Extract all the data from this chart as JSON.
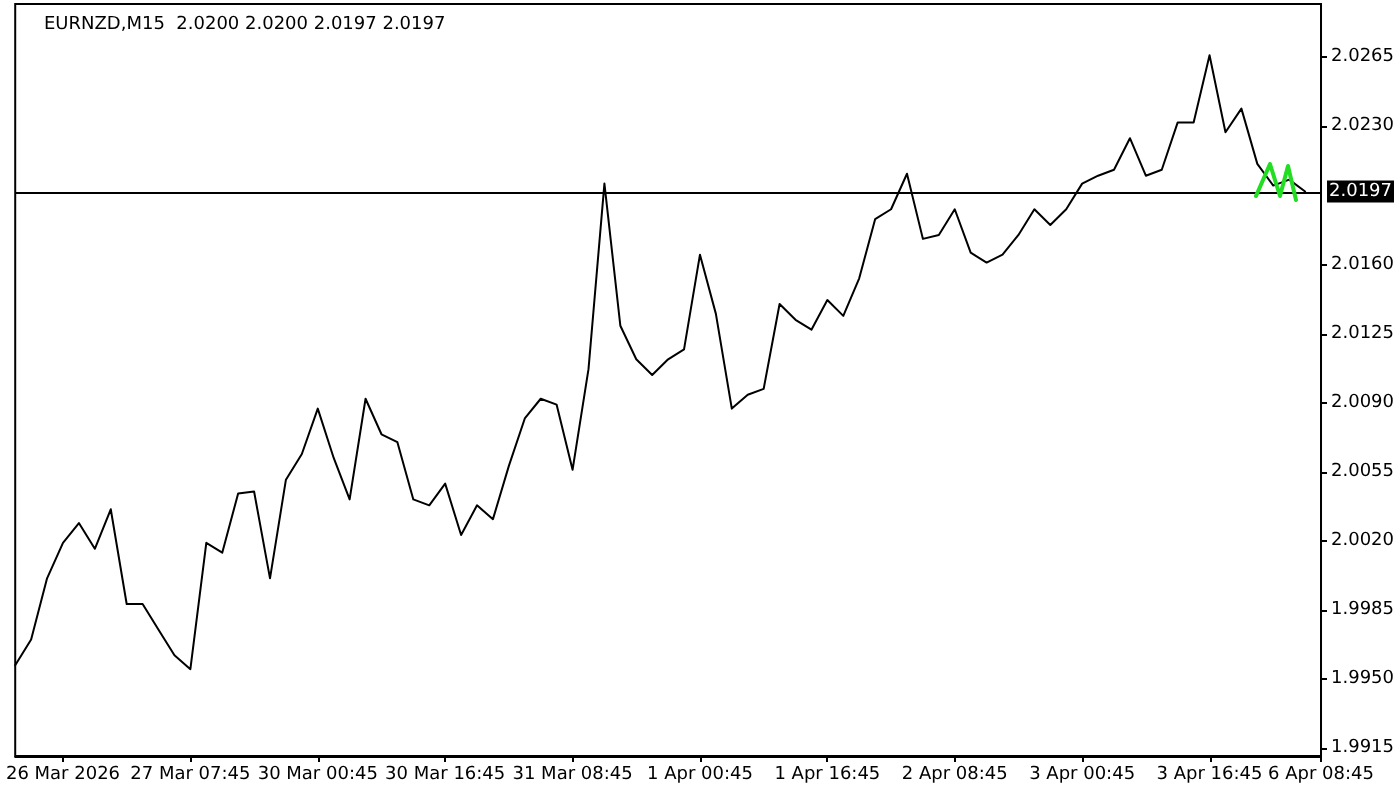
{
  "chart_data": {
    "type": "line",
    "title": "EURNZD,M15  2.0200 2.0200 2.0197 2.0197",
    "categories": [
      null,
      null,
      null,
      "26 Mar 2026",
      null,
      null,
      null,
      null,
      null,
      null,
      null,
      "27 Mar 07:45",
      null,
      null,
      null,
      null,
      null,
      null,
      null,
      "30 Mar 00:45",
      null,
      null,
      null,
      null,
      null,
      null,
      null,
      "30 Mar 16:45",
      null,
      null,
      null,
      null,
      null,
      null,
      null,
      "31 Mar 08:45",
      null,
      null,
      null,
      null,
      null,
      null,
      null,
      "1 Apr 00:45",
      null,
      null,
      null,
      null,
      null,
      null,
      null,
      "1 Apr 16:45",
      null,
      null,
      null,
      null,
      null,
      null,
      null,
      "2 Apr 08:45",
      null,
      null,
      null,
      null,
      null,
      null,
      null,
      "3 Apr 00:45",
      null,
      null,
      null,
      null,
      null,
      null,
      null,
      "3 Apr 16:45",
      null,
      null,
      null,
      null,
      null,
      null,
      "6 Apr 08:45"
    ],
    "values": [
      1.9957,
      1.997,
      2.0001,
      2.0019,
      2.0029,
      2.0016,
      2.0036,
      1.9988,
      1.9988,
      1.9975,
      1.9962,
      1.9955,
      2.0019,
      2.0014,
      2.0044,
      2.0045,
      2.0001,
      2.0051,
      2.0064,
      2.0087,
      2.0062,
      2.0041,
      2.0092,
      2.0074,
      2.007,
      2.0041,
      2.0038,
      2.0049,
      2.0023,
      2.0038,
      2.0031,
      2.0058,
      2.0082,
      2.0092,
      2.0089,
      2.0056,
      2.0107,
      2.0201,
      2.0129,
      2.0112,
      2.0104,
      2.0112,
      2.0117,
      2.0165,
      2.0135,
      2.0087,
      2.0094,
      2.0097,
      2.014,
      2.0132,
      2.0127,
      2.0142,
      2.0134,
      2.0153,
      2.0183,
      2.0188,
      2.0206,
      2.0173,
      2.0175,
      2.0188,
      2.0166,
      2.0161,
      2.0165,
      2.0175,
      2.0188,
      2.018,
      2.0188,
      2.0201,
      2.0205,
      2.0208,
      2.0224,
      2.0205,
      2.0208,
      2.0232,
      2.0232,
      2.0266,
      2.0227,
      2.0239,
      2.0211,
      2.02,
      2.0203,
      2.0197,
      null
    ],
    "color": "#000000",
    "marker": "none",
    "ylim": [
      1.9911,
      2.0292
    ],
    "yticks": [
      1.9915,
      {
        "value": 1.995,
        "label": "1.9950"
      },
      1.9985,
      {
        "value": 2.002,
        "label": "2.0020"
      },
      2.0055,
      {
        "value": 2.009,
        "label": "2.0090"
      },
      2.0125,
      {
        "value": 2.016,
        "label": "2.0160"
      },
      {
        "value": 2.023,
        "label": "2.0230"
      },
      2.0265
    ],
    "ref_lines": [
      {
        "axis": "y",
        "value": 2.0197,
        "label": "2.0197",
        "color": "#000000"
      }
    ]
  }
}
